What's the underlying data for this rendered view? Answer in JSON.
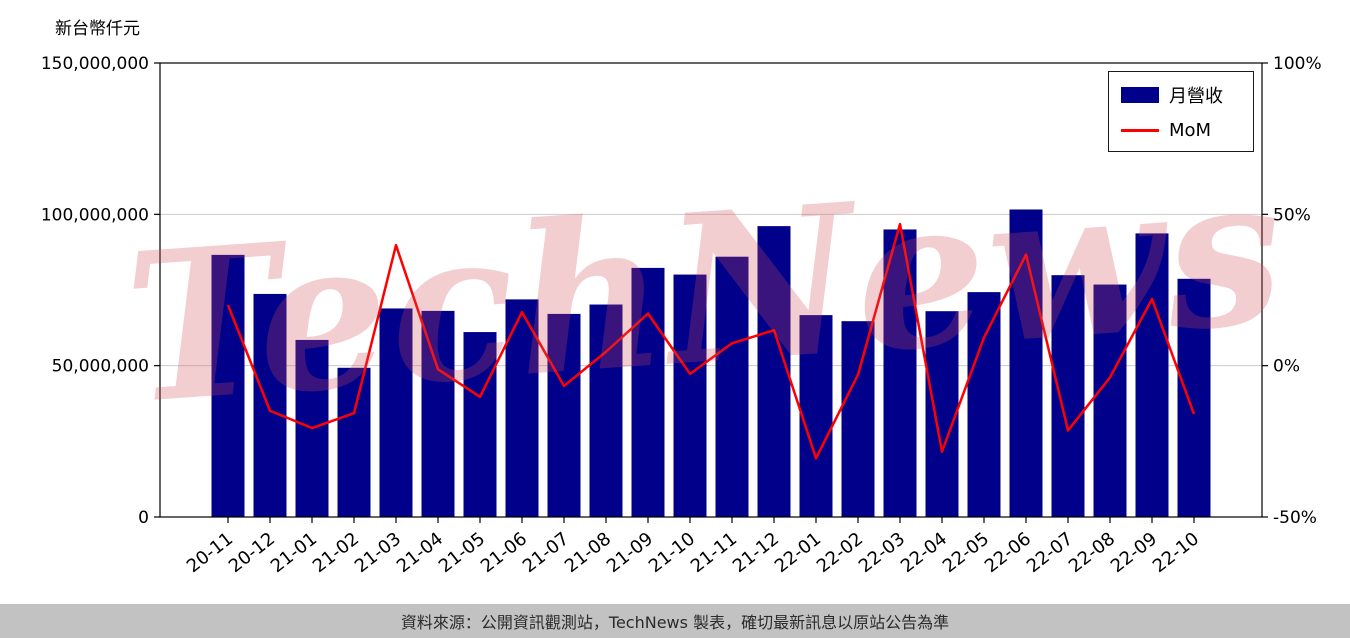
{
  "unit_label": "新台幣仟元",
  "watermark": {
    "text": "TechNews"
  },
  "footer": {
    "text": "資料來源：公開資訊觀測站，TechNews 製表，確切最新訊息以原站公告為準"
  },
  "chart_data": {
    "type": "bar+line",
    "title": "",
    "categories": [
      "20-11",
      "20-12",
      "21-01",
      "21-02",
      "21-03",
      "21-04",
      "21-05",
      "21-06",
      "21-07",
      "21-08",
      "21-09",
      "21-10",
      "21-11",
      "21-12",
      "22-01",
      "22-02",
      "22-03",
      "22-04",
      "22-05",
      "22-06",
      "22-07",
      "22-08",
      "22-09",
      "22-10"
    ],
    "series": [
      {
        "name": "月營收",
        "type": "bar",
        "axis": "left",
        "color": "#00008b",
        "values": [
          86600000,
          73700000,
          58500000,
          49300000,
          68900000,
          68100000,
          61100000,
          71900000,
          67100000,
          70200000,
          82300000,
          80100000,
          86000000,
          96100000,
          66700000,
          64700000,
          95000000,
          68000000,
          74300000,
          101600000,
          79900000,
          76800000,
          93700000,
          78700000
        ]
      },
      {
        "name": "MoM",
        "type": "line",
        "axis": "right",
        "color": "#ff0000",
        "values": [
          20.0,
          -14.9,
          -20.6,
          -15.7,
          39.8,
          -1.2,
          -10.3,
          17.7,
          -6.7,
          4.6,
          17.2,
          -2.7,
          7.4,
          11.7,
          -30.6,
          -3.0,
          46.8,
          -28.4,
          9.3,
          36.7,
          -21.4,
          -3.9,
          22.0,
          -16.0
        ]
      }
    ],
    "left_axis": {
      "label": "新台幣仟元",
      "range": [
        0,
        150000000
      ],
      "ticks": [
        0,
        50000000,
        100000000,
        150000000
      ]
    },
    "right_axis": {
      "range": [
        -50,
        100
      ],
      "ticks": [
        -50,
        0,
        50,
        100
      ],
      "suffix": "%"
    },
    "legend_position": "top-right",
    "grid": true
  }
}
